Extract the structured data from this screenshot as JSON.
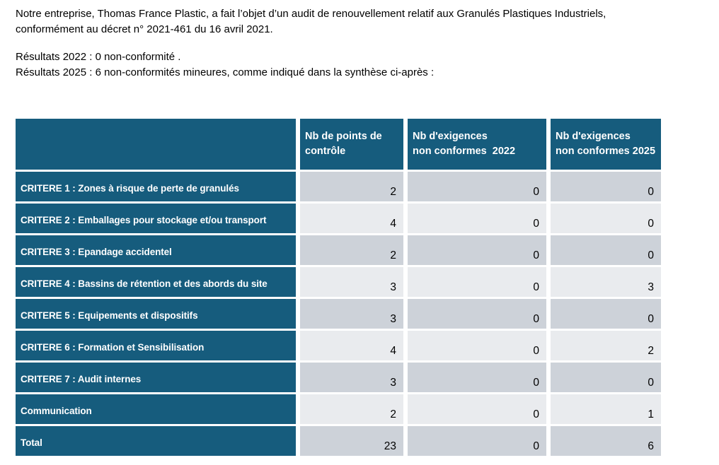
{
  "intro": {
    "paragraph": "Notre entreprise, Thomas France Plastic, a fait l’objet d’un audit de renouvellement relatif aux Granulés Plastiques Industriels,\nconformément au décret n° 2021-461 du 16 avril 2021.",
    "result_2022": "Résultats 2022 : 0 non-conformité .",
    "result_2025": "Résultats 2025 : 6 non-conformités mineures, comme indiqué dans la synthèse ci-après :"
  },
  "table": {
    "columns": [
      "",
      "Nb de points de\ncontrôle",
      "Nb d'exigences\nnon conformes  2022",
      "Nb d'exigences\nnon conformes 2025"
    ],
    "rows": [
      {
        "label": "CRITERE 1 : Zones à risque de perte de granulés",
        "values": [
          "2",
          "0",
          "0"
        ]
      },
      {
        "label": "CRITERE 2 : Emballages pour stockage et/ou transport",
        "values": [
          "4",
          "0",
          "0"
        ]
      },
      {
        "label": "CRITERE 3 : Epandage accidentel",
        "values": [
          "2",
          "0",
          "0"
        ]
      },
      {
        "label": "CRITERE 4 : Bassins de rétention et des abords du site",
        "values": [
          "3",
          "0",
          "3"
        ]
      },
      {
        "label": "CRITERE 5 : Equipements et dispositifs",
        "values": [
          "3",
          "0",
          "0"
        ]
      },
      {
        "label": "CRITERE 6 : Formation et Sensibilisation",
        "values": [
          "4",
          "0",
          "2"
        ]
      },
      {
        "label": "CRITERE 7 : Audit internes",
        "values": [
          "3",
          "0",
          "0"
        ]
      },
      {
        "label": "Communication",
        "values": [
          "2",
          "0",
          "1"
        ]
      },
      {
        "label": "Total",
        "values": [
          "23",
          "0",
          "6"
        ]
      }
    ]
  },
  "colors": {
    "header_teal": "#165C7D",
    "row_gray_dark": "#CDD2D9",
    "row_gray_light": "#E9EBEE",
    "text_black": "#000000",
    "table_gap_white": "#FFFFFF"
  }
}
